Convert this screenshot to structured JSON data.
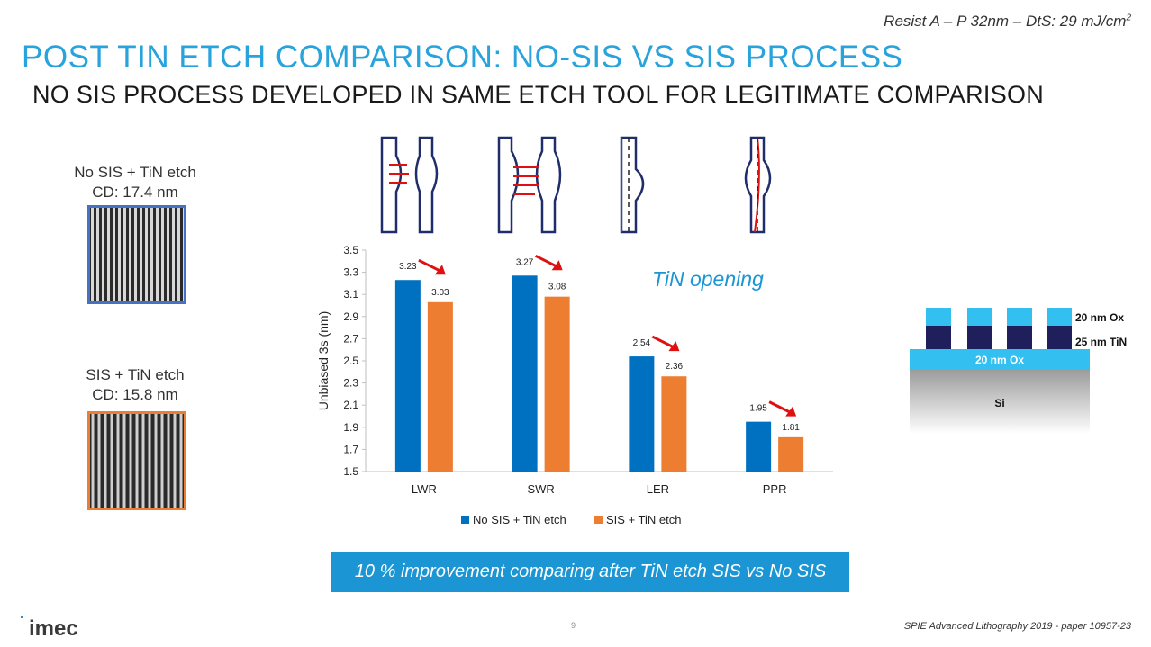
{
  "header": {
    "top_note": "Resist A – P 32nm – DtS: 29 mJ/cm",
    "top_note_sup": "2",
    "title": "POST TIN ETCH COMPARISON: NO-SIS VS SIS PROCESS",
    "subtitle": "NO SIS PROCESS DEVELOPED IN SAME ETCH TOOL FOR LEGITIMATE COMPARISON"
  },
  "samples": [
    {
      "label_line1": "No SIS + TiN etch",
      "label_line2": "CD: 17.4 nm",
      "border_color": "#4472C4"
    },
    {
      "label_line1": "SIS + TiN etch",
      "label_line2": "CD: 15.8 nm",
      "border_color": "#ED7D31"
    }
  ],
  "annotation": "TiN opening",
  "stack": {
    "layer_top": "20 nm Ox",
    "layer_mid": "25 nm TiN",
    "layer_ox": "20 nm Ox",
    "layer_si": "Si"
  },
  "banner": "10 % improvement comparing after TiN etch SIS vs No SIS",
  "footer": "SPIE Advanced Lithography 2019 - paper 10957-23",
  "page_number": "9",
  "logo_text": "imec",
  "colors": {
    "blue": "#0070C0",
    "orange": "#ED7D31",
    "accent": "#1B95D3",
    "arrow": "#E01010"
  },
  "chart_data": {
    "type": "bar",
    "categories": [
      "LWR",
      "SWR",
      "LER",
      "PPR"
    ],
    "series": [
      {
        "name": "No SIS + TiN etch",
        "values": [
          3.23,
          3.27,
          2.54,
          1.95
        ],
        "color": "#0070C0"
      },
      {
        "name": "SIS + TiN etch",
        "values": [
          3.03,
          3.08,
          2.36,
          1.81
        ],
        "color": "#ED7D31"
      }
    ],
    "ylabel": "Unbiased 3s (nm)",
    "xlabel": "",
    "ylim": [
      1.5,
      3.5
    ],
    "yticks": [
      "1.5",
      "1.7",
      "1.9",
      "2.1",
      "2.3",
      "2.5",
      "2.7",
      "2.9",
      "3.1",
      "3.3",
      "3.5"
    ],
    "legend_position": "bottom",
    "grid": false
  }
}
